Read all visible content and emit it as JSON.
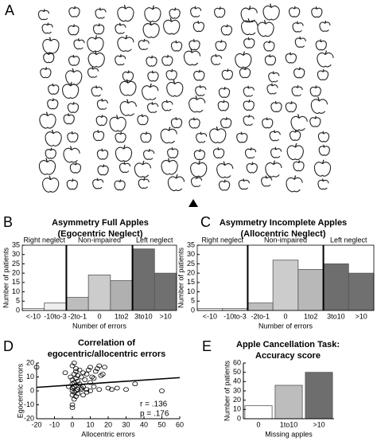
{
  "panel_labels": [
    "A",
    "B",
    "C",
    "D",
    "E"
  ],
  "chart_data": [
    {
      "type": "bar",
      "title": "Asymmetry Full Apples",
      "subtitle": "(Egocentric Neglect)",
      "categories": [
        "<-10",
        "-10to-3",
        "-2to-1",
        "0",
        "1to2",
        "3to10",
        ">10"
      ],
      "values": [
        1,
        4,
        7,
        19,
        16,
        33,
        20
      ],
      "colors": [
        "#ffffff",
        "#eeeeee",
        "#bdbdbd",
        "#cccccc",
        "#b0b0b0",
        "#6e6e6e",
        "#707070"
      ],
      "ylim": [
        0,
        35
      ],
      "yticks": [
        0,
        5,
        10,
        15,
        20,
        25,
        30,
        35
      ],
      "ylabel": "Number of patients",
      "xlabel": "Number of errors",
      "annotations": [
        "Right neglect",
        "Non-impaired",
        "Left neglect"
      ]
    },
    {
      "type": "bar",
      "title": "Asymmetry Incomplete Apples",
      "subtitle": "(Allocentric Neglect)",
      "categories": [
        "<-10",
        "-10to-3",
        "-2to-1",
        "0",
        "1to2",
        "3to10",
        ">10"
      ],
      "values": [
        1,
        1,
        4,
        27,
        22,
        25,
        20
      ],
      "colors": [
        "#ffffff",
        "#eeeeee",
        "#bdbdbd",
        "#cccccc",
        "#b8b8b8",
        "#6e6e6e",
        "#707070"
      ],
      "ylim": [
        0,
        35
      ],
      "yticks": [
        0,
        5,
        10,
        15,
        20,
        25,
        30,
        35
      ],
      "ylabel": "Number of patients",
      "xlabel": "Number of errors",
      "annotations": [
        "Right neglect",
        "Non-impaired",
        "Left neglect"
      ]
    },
    {
      "type": "scatter",
      "title": "Correlation of",
      "subtitle": "egocentric/allocentric errors",
      "x": [
        -20,
        -4,
        -1,
        0,
        0,
        0,
        0,
        0,
        1,
        1,
        1,
        1,
        2,
        2,
        2,
        2,
        3,
        3,
        3,
        4,
        4,
        5,
        5,
        6,
        6,
        7,
        8,
        8,
        9,
        10,
        10,
        11,
        12,
        13,
        14,
        15,
        16,
        17,
        18,
        20,
        22,
        25,
        0,
        1,
        2,
        3,
        0,
        1,
        2,
        5,
        10,
        15,
        -2,
        0,
        50,
        30,
        35,
        12,
        8,
        6
      ],
      "y": [
        17,
        13,
        10,
        8,
        5,
        2,
        0,
        -3,
        12,
        6,
        3,
        -1,
        14,
        9,
        4,
        0,
        11,
        7,
        1,
        15,
        5,
        10,
        2,
        13,
        3,
        8,
        12,
        1,
        15,
        6,
        17,
        10,
        9,
        14,
        16,
        18,
        11,
        12,
        17,
        2,
        1,
        2,
        -10,
        -6,
        -4,
        -2,
        18,
        20,
        16,
        1,
        0,
        1,
        3,
        -12,
        0,
        1,
        5,
        3,
        -1,
        -3
      ],
      "fit": {
        "x": [
          -20,
          60
        ],
        "y": [
          2.5,
          9.5
        ]
      },
      "xlim": [
        -20,
        60
      ],
      "xticks": [
        -20,
        -10,
        0,
        10,
        20,
        30,
        40,
        50,
        60
      ],
      "ylim": [
        -20,
        20
      ],
      "yticks": [
        -20,
        -10,
        0,
        10,
        20
      ],
      "ylabel": "Egocentric errors",
      "xlabel": "Allocentric errors",
      "annotations": [
        "r = .136",
        "p = .176"
      ]
    },
    {
      "type": "bar",
      "title": "Apple Cancellation Task:",
      "subtitle": "Accuracy score",
      "categories": [
        "0",
        "1to10",
        ">10"
      ],
      "values": [
        14,
        36,
        50
      ],
      "colors": [
        "#ffffff",
        "#bdbdbd",
        "#6e6e6e"
      ],
      "ylim": [
        0,
        60
      ],
      "yticks": [
        0,
        10,
        20,
        30,
        40,
        50,
        60
      ],
      "ylabel": "Number of patients",
      "xlabel": "Missing apples"
    }
  ]
}
